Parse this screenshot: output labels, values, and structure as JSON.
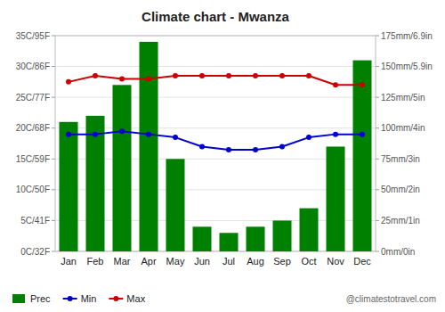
{
  "chart_data": {
    "type": "bar",
    "title": "Climate chart - Mwanza",
    "categories": [
      "Jan",
      "Feb",
      "Mar",
      "Apr",
      "May",
      "Jun",
      "Jul",
      "Aug",
      "Sep",
      "Oct",
      "Nov",
      "Dec"
    ],
    "series": [
      {
        "name": "Prec",
        "type": "bar",
        "axis": "y2",
        "color": "#008000",
        "values": [
          105,
          110,
          135,
          170,
          75,
          20,
          15,
          20,
          25,
          35,
          85,
          155
        ]
      },
      {
        "name": "Min",
        "type": "line",
        "color": "#0000cc",
        "marker": "circle",
        "values": [
          19,
          19,
          19.5,
          19,
          18.5,
          17,
          16.5,
          16.5,
          17,
          18.5,
          19,
          19
        ]
      },
      {
        "name": "Max",
        "type": "line",
        "color": "#cc0000",
        "marker": "circle",
        "values": [
          27.5,
          28.5,
          28,
          28,
          28.5,
          28.5,
          28.5,
          28.5,
          28.5,
          28.5,
          27,
          27
        ]
      }
    ],
    "ylim": [
      0,
      35
    ],
    "yticks": [
      {
        "value": 0,
        "label": "0C/32F"
      },
      {
        "value": 5,
        "label": "5C/41F"
      },
      {
        "value": 10,
        "label": "10C/50F"
      },
      {
        "value": 15,
        "label": "15C/59F"
      },
      {
        "value": 20,
        "label": "20C/68F"
      },
      {
        "value": 25,
        "label": "25C/77F"
      },
      {
        "value": 30,
        "label": "30C/86F"
      },
      {
        "value": 35,
        "label": "35C/95F"
      }
    ],
    "y2lim": [
      0,
      175
    ],
    "y2ticks": [
      {
        "value": 0,
        "label": "0mm/0in"
      },
      {
        "value": 25,
        "label": "25mm/1in"
      },
      {
        "value": 50,
        "label": "50mm/2in"
      },
      {
        "value": 75,
        "label": "75mm/3in"
      },
      {
        "value": 100,
        "label": "100mm/4in"
      },
      {
        "value": 125,
        "label": "125mm/5in"
      },
      {
        "value": 150,
        "label": "150mm/5.9in"
      },
      {
        "value": 175,
        "label": "175mm/6.9in"
      }
    ],
    "grid": true,
    "legend": "lower left",
    "annotations": [
      "@climatestotravel.com"
    ]
  }
}
